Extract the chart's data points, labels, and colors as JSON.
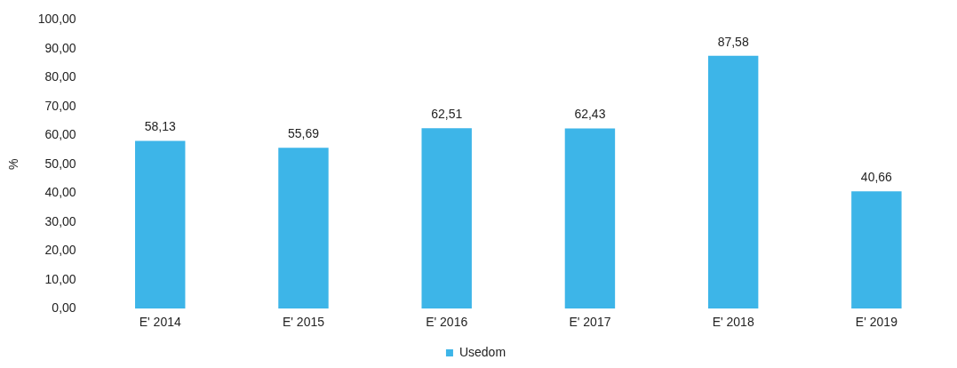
{
  "chart_data": {
    "type": "bar",
    "ylabel": "%",
    "categories": [
      "E' 2014",
      "E' 2015",
      "E' 2016",
      "E' 2017",
      "E' 2018",
      "E' 2019"
    ],
    "series": [
      {
        "name": "Usedom",
        "color": "#3db5e8",
        "values": [
          58.13,
          55.69,
          62.51,
          62.43,
          87.58,
          40.66
        ],
        "value_labels": [
          "58,13",
          "55,69",
          "62,51",
          "62,43",
          "87,58",
          "40,66"
        ]
      }
    ],
    "ylim": [
      0,
      100
    ],
    "yticks": [
      {
        "value": 0,
        "label": "0,00"
      },
      {
        "value": 10,
        "label": "10,00"
      },
      {
        "value": 20,
        "label": "20,00"
      },
      {
        "value": 30,
        "label": "30,00"
      },
      {
        "value": 40,
        "label": "40,00"
      },
      {
        "value": 50,
        "label": "50,00"
      },
      {
        "value": 60,
        "label": "60,00"
      },
      {
        "value": 70,
        "label": "70,00"
      },
      {
        "value": 80,
        "label": "80,00"
      },
      {
        "value": 90,
        "label": "90,00"
      },
      {
        "value": 100,
        "label": "100,00"
      }
    ],
    "legend": "bottom"
  }
}
